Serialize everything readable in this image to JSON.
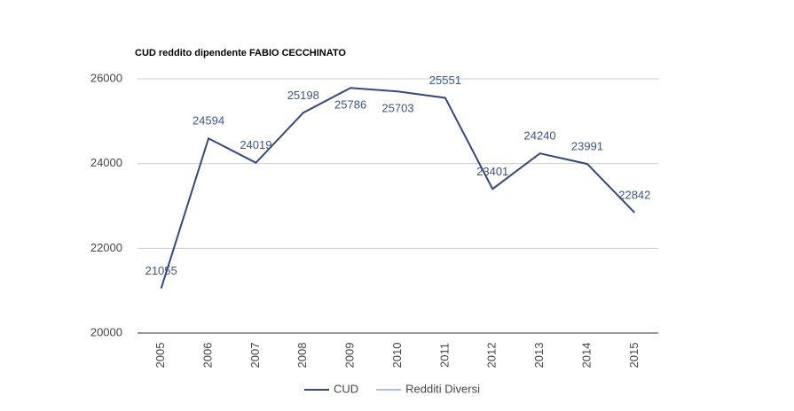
{
  "chart_data": {
    "type": "line",
    "title": "CUD reddito dipendente FABIO CECCHINATO",
    "categories": [
      "2005",
      "2006",
      "2007",
      "2008",
      "2009",
      "2010",
      "2011",
      "2012",
      "2013",
      "2014",
      "2015"
    ],
    "series": [
      {
        "name": "CUD",
        "color": "#34497a",
        "values": [
          21055,
          24594,
          24019,
          25198,
          25786,
          25703,
          25551,
          23401,
          24240,
          23991,
          22842
        ]
      },
      {
        "name": "Redditi Diversi",
        "color": "#a9bfe0",
        "values": [
          null,
          null,
          null,
          null,
          null,
          null,
          null,
          null,
          null,
          null,
          null
        ]
      }
    ],
    "ylim": [
      20000,
      26000
    ],
    "yticks": [
      20000,
      22000,
      24000,
      26000
    ],
    "grid": true,
    "legend": "bottom"
  }
}
